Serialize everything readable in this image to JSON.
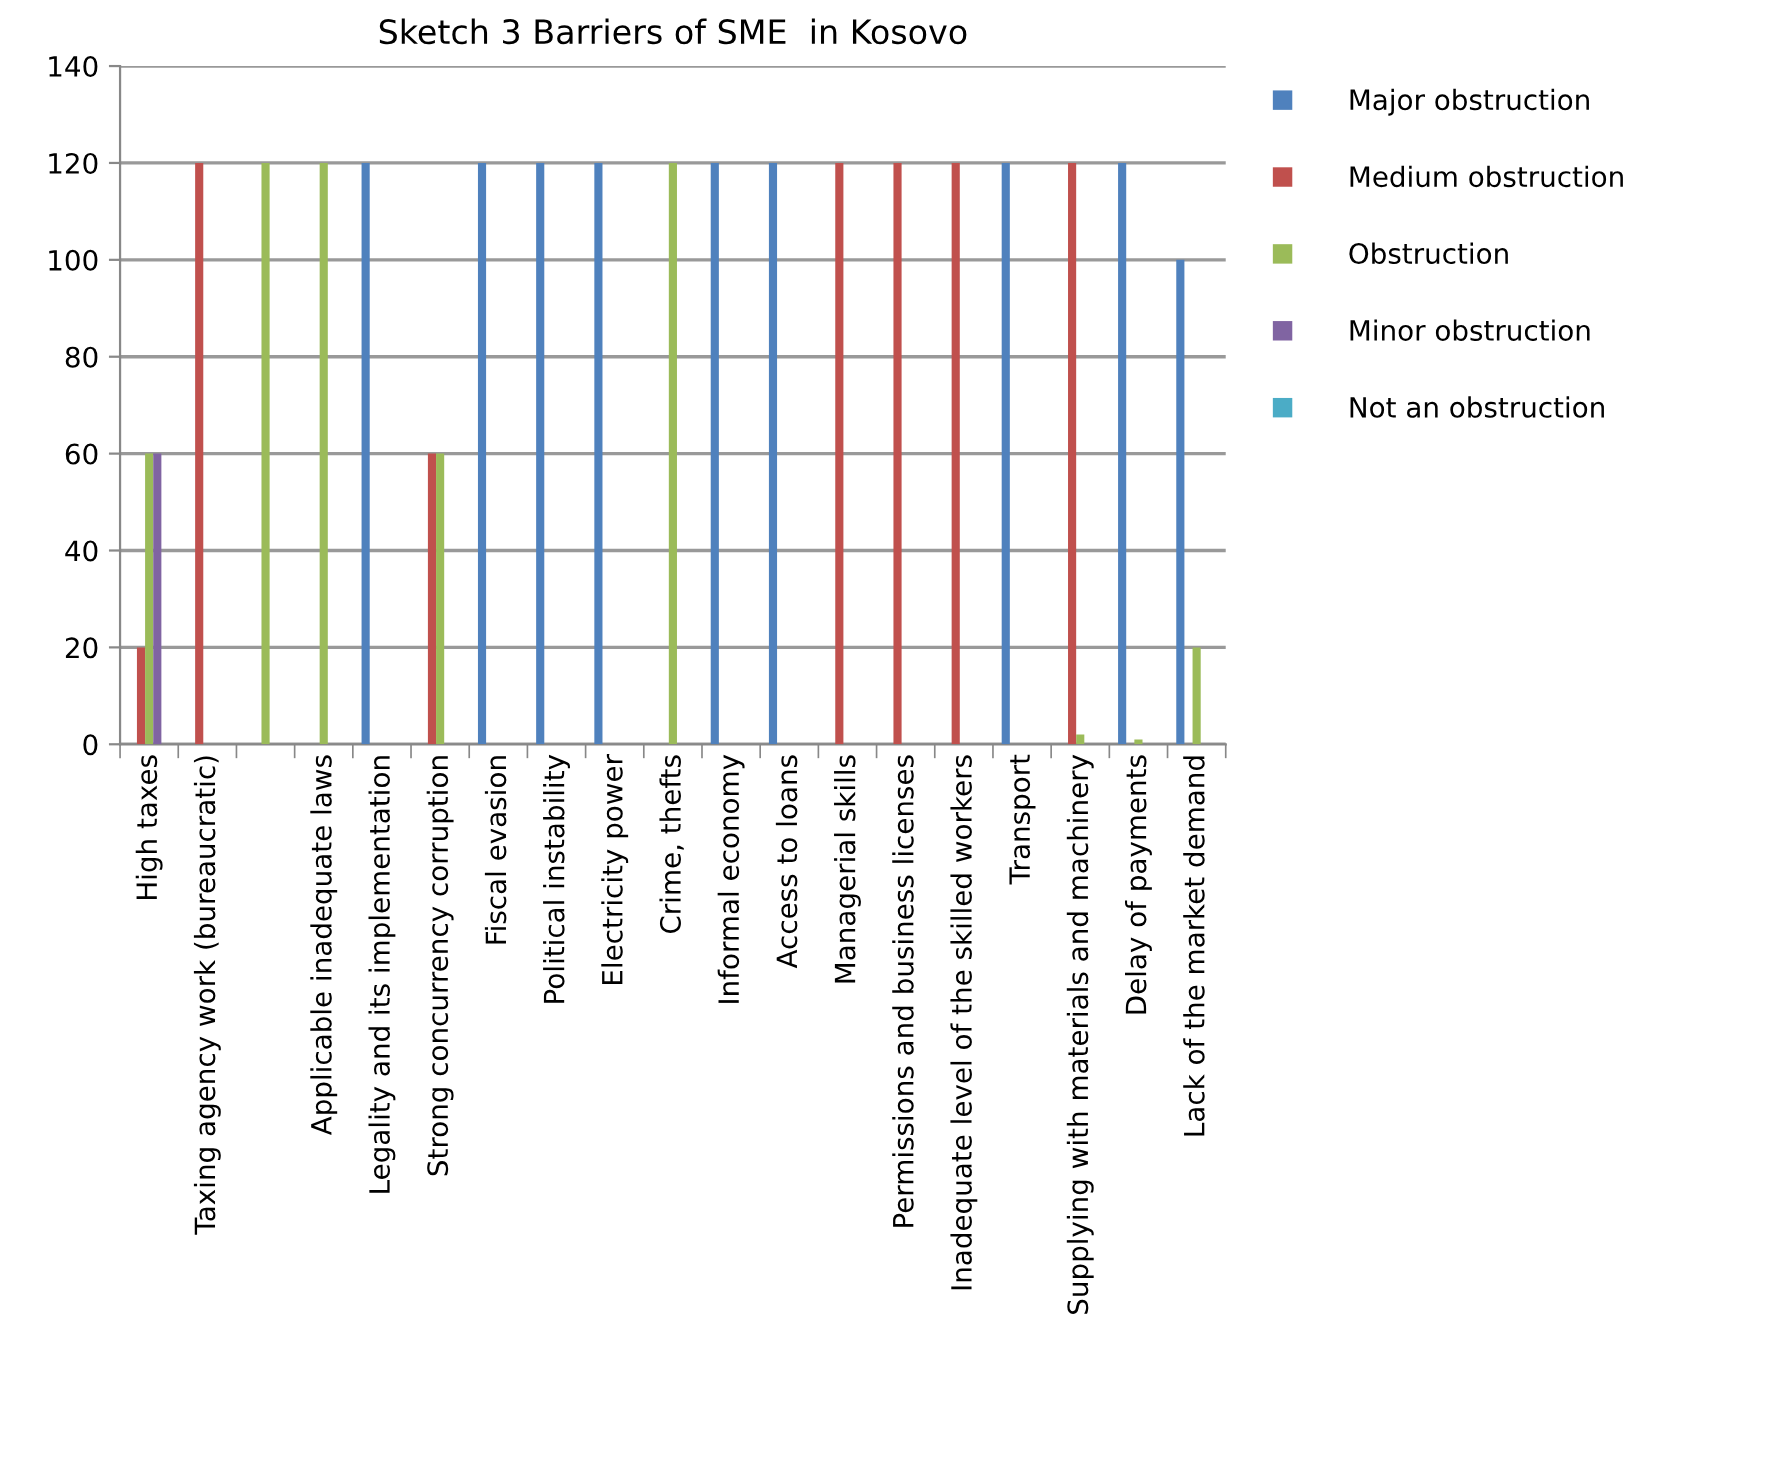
{
  "chart_data": {
    "type": "bar",
    "title": "Sketch 3 Barriers of SME  in Kosovo",
    "categories": [
      "High taxes",
      "Taxing agency work (bureaucratic)",
      null,
      "Applicable inadequate laws",
      "Legality and its implementation",
      "Strong concurrency corruption",
      "Fiscal evasion",
      "Political instability",
      "Electricity power",
      "Crime, thefts",
      "Informal economy",
      "Access to loans",
      "Managerial skills",
      "Permissions and business licenses",
      "Inadequate level of the skilled workers",
      "Transport",
      "Supplying with materials and machinery",
      "Delay of payments",
      "Lack of the market demand"
    ],
    "series": [
      {
        "name": "Major obstruction",
        "color": "#4f81bd",
        "values": [
          0,
          0,
          0,
          0,
          120,
          0,
          120,
          120,
          120,
          0,
          120,
          120,
          0,
          0,
          0,
          120,
          0,
          120,
          100
        ]
      },
      {
        "name": "Medium obstruction",
        "color": "#c0504d",
        "values": [
          20,
          120,
          0,
          0,
          0,
          60,
          0,
          0,
          0,
          0,
          0,
          0,
          120,
          120,
          120,
          0,
          120,
          0,
          0
        ]
      },
      {
        "name": "Obstruction",
        "color": "#9bbb59",
        "values": [
          60,
          0,
          120,
          120,
          0,
          60,
          0,
          0,
          0,
          120,
          0,
          0,
          0,
          0,
          0,
          0,
          2,
          1,
          20
        ]
      },
      {
        "name": "Minor obstruction",
        "color": "#8064a2",
        "values": [
          60,
          0,
          0,
          0,
          0,
          0,
          0,
          0,
          0,
          0,
          0,
          0,
          0,
          0,
          0,
          0,
          0,
          0,
          0
        ]
      },
      {
        "name": "Not an obstruction",
        "color": "#4bacc6",
        "values": [
          0,
          0,
          0,
          0,
          0,
          0,
          0,
          0,
          0,
          0,
          0,
          0,
          0,
          0,
          0,
          0,
          0,
          0,
          0
        ]
      }
    ],
    "ylim": [
      0,
      140
    ],
    "yticks": [
      0,
      20,
      40,
      60,
      80,
      100,
      120,
      140
    ],
    "grid": "y",
    "legend": "right"
  }
}
